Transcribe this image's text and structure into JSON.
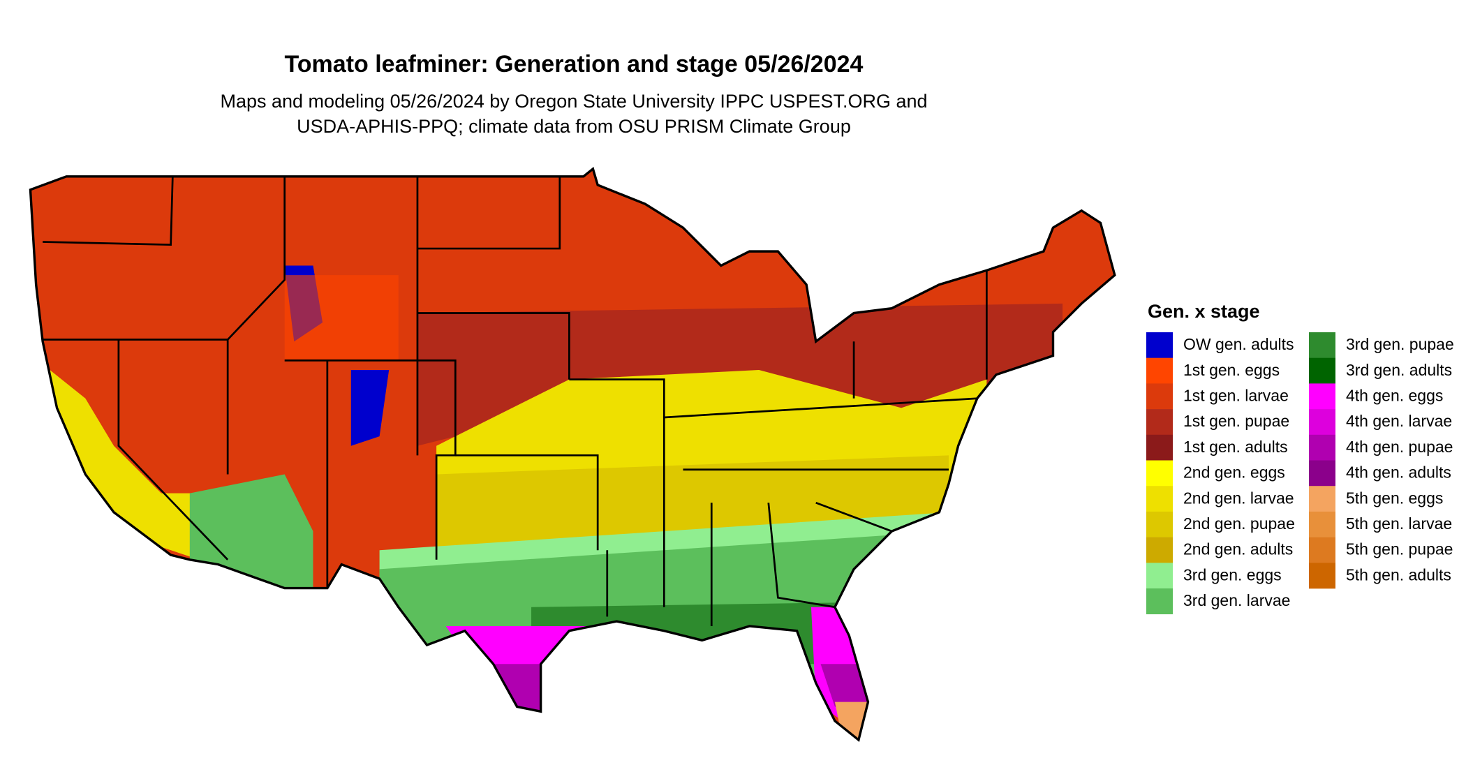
{
  "title": "Tomato leafminer: Generation and stage 05/26/2024",
  "subtitle": [
    "Maps and modeling 05/26/2024 by Oregon State University IPPC USPEST.ORG and",
    "USDA-APHIS-PPQ; climate data from OSU PRISM Climate Group"
  ],
  "legend": {
    "title": "Gen. x stage",
    "rows_per_column": 11,
    "items": [
      {
        "label": "OW gen. adults",
        "color": "#0000cd"
      },
      {
        "label": "1st gen. eggs",
        "color": "#ff4500"
      },
      {
        "label": "1st gen. larvae",
        "color": "#dc3a0c"
      },
      {
        "label": "1st gen. pupae",
        "color": "#b22a1a"
      },
      {
        "label": "1st gen. adults",
        "color": "#8b1a1a"
      },
      {
        "label": "2nd gen. eggs",
        "color": "#ffff00"
      },
      {
        "label": "2nd gen. larvae",
        "color": "#eee000"
      },
      {
        "label": "2nd gen. pupae",
        "color": "#ddc800"
      },
      {
        "label": "2nd gen. adults",
        "color": "#cdaa00"
      },
      {
        "label": "3rd gen. eggs",
        "color": "#90ee90"
      },
      {
        "label": "3rd gen. larvae",
        "color": "#5cbf5c"
      },
      {
        "label": "3rd gen. pupae",
        "color": "#2e8b2e"
      },
      {
        "label": "3rd gen. adults",
        "color": "#006400"
      },
      {
        "label": "4th gen. eggs",
        "color": "#ff00ff"
      },
      {
        "label": "4th gen. larvae",
        "color": "#dd00dd"
      },
      {
        "label": "4th gen. pupae",
        "color": "#b000b0"
      },
      {
        "label": "4th gen. adults",
        "color": "#8b008b"
      },
      {
        "label": "5th gen. eggs",
        "color": "#f4a460"
      },
      {
        "label": "5th gen. larvae",
        "color": "#e8903a"
      },
      {
        "label": "5th gen. pupae",
        "color": "#dd7a20"
      },
      {
        "label": "5th gen. adults",
        "color": "#cd6600"
      }
    ]
  }
}
